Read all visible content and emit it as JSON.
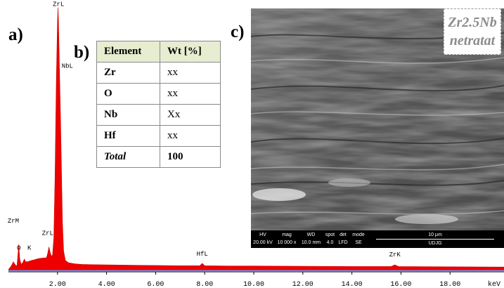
{
  "panel_labels": {
    "a": "a)",
    "b": "b)",
    "c": "c)"
  },
  "chart_data": {
    "type": "area",
    "title": "",
    "xlabel": "keV",
    "ylabel": "",
    "xlim": [
      0,
      20.2
    ],
    "ylim": [
      0,
      100
    ],
    "x_ticks": [
      "2.00",
      "4.00",
      "6.00",
      "8.00",
      "10.00",
      "12.00",
      "14.00",
      "16.00",
      "18.00"
    ],
    "x_tick_values": [
      2,
      4,
      6,
      8,
      10,
      12,
      14,
      16,
      18
    ],
    "grid": false,
    "fill_color": "#ee0000",
    "background_color": "#d9d2ff",
    "points": [
      [
        0.0,
        0.0
      ],
      [
        0.05,
        0.6
      ],
      [
        0.1,
        1.2
      ],
      [
        0.15,
        2.0
      ],
      [
        0.2,
        3.0
      ],
      [
        0.25,
        2.2
      ],
      [
        0.3,
        1.6
      ],
      [
        0.35,
        1.5
      ],
      [
        0.42,
        9.5
      ],
      [
        0.46,
        4.0
      ],
      [
        0.52,
        2.0
      ],
      [
        0.58,
        2.6
      ],
      [
        0.65,
        4.0
      ],
      [
        0.7,
        3.0
      ],
      [
        0.78,
        3.0
      ],
      [
        0.85,
        3.2
      ],
      [
        0.95,
        3.5
      ],
      [
        1.05,
        3.7
      ],
      [
        1.15,
        4.0
      ],
      [
        1.25,
        4.2
      ],
      [
        1.35,
        4.3
      ],
      [
        1.45,
        4.4
      ],
      [
        1.55,
        4.5
      ],
      [
        1.6,
        6.0
      ],
      [
        1.65,
        8.5
      ],
      [
        1.7,
        6.5
      ],
      [
        1.75,
        5.0
      ],
      [
        1.8,
        5.5
      ],
      [
        1.85,
        12.0
      ],
      [
        1.9,
        35.0
      ],
      [
        1.95,
        70.0
      ],
      [
        2.0,
        93.0
      ],
      [
        2.02,
        98.0
      ],
      [
        2.04,
        93.0
      ],
      [
        2.08,
        75.0
      ],
      [
        2.12,
        58.0
      ],
      [
        2.16,
        38.0
      ],
      [
        2.2,
        18.0
      ],
      [
        2.25,
        7.0
      ],
      [
        2.32,
        3.5
      ],
      [
        2.45,
        2.6
      ],
      [
        2.7,
        2.2
      ],
      [
        3.0,
        2.0
      ],
      [
        3.5,
        1.9
      ],
      [
        4.0,
        1.8
      ],
      [
        5.0,
        1.7
      ],
      [
        6.0,
        1.6
      ],
      [
        7.0,
        1.5
      ],
      [
        7.8,
        1.5
      ],
      [
        7.9,
        2.4
      ],
      [
        8.0,
        1.5
      ],
      [
        9.0,
        1.4
      ],
      [
        10.0,
        1.4
      ],
      [
        12.0,
        1.3
      ],
      [
        14.0,
        1.2
      ],
      [
        15.6,
        1.2
      ],
      [
        15.75,
        1.8
      ],
      [
        15.9,
        1.2
      ],
      [
        18.0,
        1.1
      ],
      [
        20.2,
        1.0
      ]
    ],
    "annotations": [
      {
        "text": "ZrL",
        "x": 2.04,
        "y": 98.0,
        "anchor": "center"
      },
      {
        "text": "NbL",
        "x": 2.17,
        "y": 75.0,
        "anchor": "start"
      },
      {
        "text": "ZrM",
        "x": 0.2,
        "y": 17.0,
        "anchor": "center"
      },
      {
        "text": "ZrL",
        "x": 1.6,
        "y": 12.5,
        "anchor": "center"
      },
      {
        "text": "O",
        "x": 0.42,
        "y": 7.0,
        "anchor": "center"
      },
      {
        "text": "K",
        "x": 0.85,
        "y": 7.0,
        "anchor": "center"
      },
      {
        "text": "HfL",
        "x": 7.9,
        "y": 4.7,
        "anchor": "center"
      },
      {
        "text": "ZrK",
        "x": 15.75,
        "y": 4.5,
        "anchor": "center"
      }
    ]
  },
  "composition_table": {
    "headers": [
      "Element",
      "Wt [%]"
    ],
    "rows": [
      [
        "Zr",
        "xx"
      ],
      [
        "O",
        "xx"
      ],
      [
        "Nb",
        "Xx"
      ],
      [
        "Hf",
        "xx"
      ],
      [
        "Total",
        "100"
      ]
    ]
  },
  "sem": {
    "caption_line1": "Zr2.5Nb",
    "caption_line2": "netratat",
    "info_columns": [
      {
        "header": "HV",
        "value": "20.00 kV"
      },
      {
        "header": "mag",
        "value": "10 000 x"
      },
      {
        "header": "WD",
        "value": "10.0 mm"
      },
      {
        "header": "spot",
        "value": "4.0"
      },
      {
        "header": "det",
        "value": "LFD"
      },
      {
        "header": "mode",
        "value": "SE"
      }
    ],
    "scale_label": "10 μm",
    "lab_label": "UDJG"
  }
}
